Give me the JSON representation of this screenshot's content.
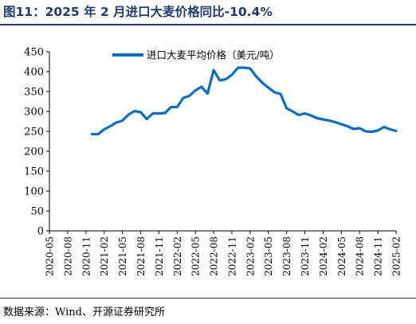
{
  "header": {
    "title": "图11：2025 年 2 月进口大麦价格同比-10.4%"
  },
  "footer": {
    "source": "数据来源：Wind、开源证券研究所"
  },
  "chart_data": {
    "type": "line",
    "ylim": [
      0,
      450
    ],
    "yticks": [
      0,
      50,
      100,
      150,
      200,
      250,
      300,
      350,
      400,
      450
    ],
    "grid": false,
    "legend_position": "top-center",
    "x_tick_labels": [
      "2020-05",
      "2020-08",
      "2020-11",
      "2021-02",
      "2021-05",
      "2021-08",
      "2021-11",
      "2022-02",
      "2022-05",
      "2022-08",
      "2022-11",
      "2023-02",
      "2023-05",
      "2023-08",
      "2023-11",
      "2024-02",
      "2024-05",
      "2024-08",
      "2024-11",
      "2025-02"
    ],
    "series": [
      {
        "name": "进口大麦平均价格（美元/吨）",
        "color": "#0b6fbf",
        "points": [
          [
            "2020-12",
            243
          ],
          [
            "2021-01",
            243
          ],
          [
            "2021-02",
            255
          ],
          [
            "2021-03",
            263
          ],
          [
            "2021-04",
            272
          ],
          [
            "2021-05",
            277
          ],
          [
            "2021-06",
            292
          ],
          [
            "2021-07",
            301
          ],
          [
            "2021-08",
            298
          ],
          [
            "2021-09",
            281
          ],
          [
            "2021-10",
            295
          ],
          [
            "2021-11",
            295
          ],
          [
            "2021-12",
            296
          ],
          [
            "2022-01",
            311
          ],
          [
            "2022-02",
            311
          ],
          [
            "2022-03",
            334
          ],
          [
            "2022-04",
            339
          ],
          [
            "2022-05",
            353
          ],
          [
            "2022-06",
            362
          ],
          [
            "2022-07",
            345
          ],
          [
            "2022-08",
            404
          ],
          [
            "2022-09",
            378
          ],
          [
            "2022-10",
            381
          ],
          [
            "2022-11",
            392
          ],
          [
            "2022-12",
            410
          ],
          [
            "2023-01",
            410
          ],
          [
            "2023-02",
            408
          ],
          [
            "2023-03",
            388
          ],
          [
            "2023-04",
            372
          ],
          [
            "2023-05",
            360
          ],
          [
            "2023-06",
            348
          ],
          [
            "2023-07",
            344
          ],
          [
            "2023-08",
            308
          ],
          [
            "2023-09",
            300
          ],
          [
            "2023-10",
            291
          ],
          [
            "2023-11",
            295
          ],
          [
            "2023-12",
            290
          ],
          [
            "2024-01",
            283
          ],
          [
            "2024-02",
            280
          ],
          [
            "2024-03",
            277
          ],
          [
            "2024-04",
            273
          ],
          [
            "2024-05",
            268
          ],
          [
            "2024-06",
            263
          ],
          [
            "2024-07",
            256
          ],
          [
            "2024-08",
            258
          ],
          [
            "2024-09",
            250
          ],
          [
            "2024-10",
            249
          ],
          [
            "2024-11",
            252
          ],
          [
            "2024-12",
            261
          ],
          [
            "2025-01",
            255
          ],
          [
            "2025-02",
            251
          ]
        ]
      }
    ]
  }
}
